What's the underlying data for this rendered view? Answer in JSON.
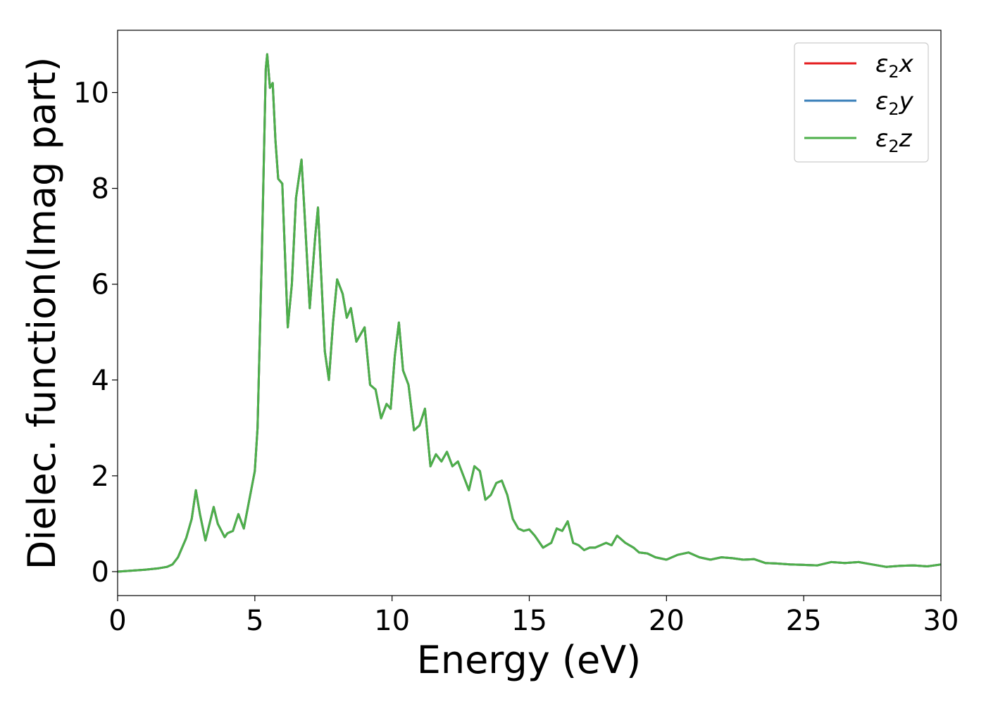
{
  "chart_data": {
    "type": "line",
    "title": "",
    "xlabel": "Energy (eV)",
    "ylabel": "Dielec. function(Imag part)",
    "xlim": [
      0,
      30
    ],
    "ylim": [
      -0.5,
      11.3
    ],
    "xticks": [
      "0",
      "5",
      "10",
      "15",
      "20",
      "25",
      "30"
    ],
    "yticks": [
      "0",
      "2",
      "4",
      "6",
      "8",
      "10"
    ],
    "grid": false,
    "legend_position": "top-right",
    "series": [
      {
        "name": "ε₂x",
        "legend_base": "ε",
        "legend_sub": "2",
        "legend_var": "x",
        "color": "#e41a1c",
        "x": [
          0,
          0.5,
          1.0,
          1.5,
          1.8,
          2.0,
          2.2,
          2.5,
          2.7,
          2.85,
          3.0,
          3.2,
          3.5,
          3.65,
          3.9,
          4.0,
          4.2,
          4.4,
          4.6,
          4.8,
          5.0,
          5.1,
          5.25,
          5.4,
          5.45,
          5.55,
          5.65,
          5.75,
          5.85,
          6.0,
          6.2,
          6.35,
          6.5,
          6.7,
          6.8,
          7.0,
          7.2,
          7.3,
          7.55,
          7.7,
          7.85,
          8.0,
          8.2,
          8.35,
          8.5,
          8.7,
          9.0,
          9.2,
          9.4,
          9.6,
          9.8,
          9.95,
          10.1,
          10.25,
          10.4,
          10.6,
          10.8,
          11.0,
          11.2,
          11.4,
          11.6,
          11.8,
          12.0,
          12.2,
          12.4,
          12.6,
          12.8,
          13.0,
          13.2,
          13.4,
          13.6,
          13.8,
          14.0,
          14.2,
          14.4,
          14.6,
          14.8,
          15.0,
          15.2,
          15.5,
          15.8,
          16.0,
          16.2,
          16.4,
          16.6,
          16.8,
          17.0,
          17.2,
          17.4,
          17.6,
          17.8,
          18.0,
          18.2,
          18.5,
          18.8,
          19.0,
          19.3,
          19.6,
          20.0,
          20.4,
          20.8,
          21.2,
          21.6,
          22.0,
          22.4,
          22.8,
          23.2,
          23.6,
          24.0,
          24.5,
          25.0,
          25.5,
          26.0,
          26.5,
          27.0,
          27.5,
          28.0,
          28.5,
          29.0,
          29.5,
          30.0
        ],
        "y": [
          0.0,
          0.02,
          0.04,
          0.07,
          0.1,
          0.15,
          0.3,
          0.7,
          1.1,
          1.7,
          1.2,
          0.65,
          1.35,
          1.0,
          0.72,
          0.8,
          0.85,
          1.2,
          0.9,
          1.5,
          2.1,
          3.0,
          6.5,
          10.5,
          10.8,
          10.1,
          10.2,
          9.0,
          8.2,
          8.1,
          5.1,
          6.0,
          7.8,
          8.6,
          7.6,
          5.5,
          7.0,
          7.6,
          4.6,
          4.0,
          5.2,
          6.1,
          5.8,
          5.3,
          5.5,
          4.8,
          5.1,
          3.9,
          3.8,
          3.2,
          3.5,
          3.4,
          4.5,
          5.2,
          4.2,
          3.9,
          2.95,
          3.05,
          3.4,
          2.2,
          2.45,
          2.3,
          2.5,
          2.2,
          2.3,
          2.0,
          1.7,
          2.2,
          2.1,
          1.5,
          1.6,
          1.85,
          1.9,
          1.6,
          1.1,
          0.9,
          0.85,
          0.88,
          0.75,
          0.5,
          0.6,
          0.9,
          0.85,
          1.05,
          0.6,
          0.55,
          0.45,
          0.5,
          0.5,
          0.55,
          0.6,
          0.55,
          0.75,
          0.6,
          0.5,
          0.4,
          0.38,
          0.3,
          0.25,
          0.35,
          0.4,
          0.3,
          0.25,
          0.3,
          0.28,
          0.25,
          0.26,
          0.18,
          0.17,
          0.15,
          0.14,
          0.13,
          0.2,
          0.18,
          0.2,
          0.15,
          0.1,
          0.12,
          0.13,
          0.11,
          0.15
        ]
      },
      {
        "name": "ε₂y",
        "legend_base": "ε",
        "legend_sub": "2",
        "legend_var": "y",
        "color": "#377eb8",
        "x": [
          0,
          0.5,
          1.0,
          1.5,
          1.8,
          2.0,
          2.2,
          2.5,
          2.7,
          2.85,
          3.0,
          3.2,
          3.5,
          3.65,
          3.9,
          4.0,
          4.2,
          4.4,
          4.6,
          4.8,
          5.0,
          5.1,
          5.25,
          5.4,
          5.45,
          5.55,
          5.65,
          5.75,
          5.85,
          6.0,
          6.2,
          6.35,
          6.5,
          6.7,
          6.8,
          7.0,
          7.2,
          7.3,
          7.55,
          7.7,
          7.85,
          8.0,
          8.2,
          8.35,
          8.5,
          8.7,
          9.0,
          9.2,
          9.4,
          9.6,
          9.8,
          9.95,
          10.1,
          10.25,
          10.4,
          10.6,
          10.8,
          11.0,
          11.2,
          11.4,
          11.6,
          11.8,
          12.0,
          12.2,
          12.4,
          12.6,
          12.8,
          13.0,
          13.2,
          13.4,
          13.6,
          13.8,
          14.0,
          14.2,
          14.4,
          14.6,
          14.8,
          15.0,
          15.2,
          15.5,
          15.8,
          16.0,
          16.2,
          16.4,
          16.6,
          16.8,
          17.0,
          17.2,
          17.4,
          17.6,
          17.8,
          18.0,
          18.2,
          18.5,
          18.8,
          19.0,
          19.3,
          19.6,
          20.0,
          20.4,
          20.8,
          21.2,
          21.6,
          22.0,
          22.4,
          22.8,
          23.2,
          23.6,
          24.0,
          24.5,
          25.0,
          25.5,
          26.0,
          26.5,
          27.0,
          27.5,
          28.0,
          28.5,
          29.0,
          29.5,
          30.0
        ],
        "y": [
          0.0,
          0.02,
          0.04,
          0.07,
          0.1,
          0.15,
          0.3,
          0.7,
          1.1,
          1.7,
          1.2,
          0.65,
          1.35,
          1.0,
          0.72,
          0.8,
          0.85,
          1.2,
          0.9,
          1.5,
          2.1,
          3.0,
          6.5,
          10.5,
          10.8,
          10.1,
          10.2,
          9.0,
          8.2,
          8.1,
          5.1,
          6.0,
          7.8,
          8.6,
          7.6,
          5.5,
          7.0,
          7.6,
          4.6,
          4.0,
          5.2,
          6.1,
          5.8,
          5.3,
          5.5,
          4.8,
          5.1,
          3.9,
          3.8,
          3.2,
          3.5,
          3.4,
          4.5,
          5.2,
          4.2,
          3.9,
          2.95,
          3.05,
          3.4,
          2.2,
          2.45,
          2.3,
          2.5,
          2.2,
          2.3,
          2.0,
          1.7,
          2.2,
          2.1,
          1.5,
          1.6,
          1.85,
          1.9,
          1.6,
          1.1,
          0.9,
          0.85,
          0.88,
          0.75,
          0.5,
          0.6,
          0.9,
          0.85,
          1.05,
          0.6,
          0.55,
          0.45,
          0.5,
          0.5,
          0.55,
          0.6,
          0.55,
          0.75,
          0.6,
          0.5,
          0.4,
          0.38,
          0.3,
          0.25,
          0.35,
          0.4,
          0.3,
          0.25,
          0.3,
          0.28,
          0.25,
          0.26,
          0.18,
          0.17,
          0.15,
          0.14,
          0.13,
          0.2,
          0.18,
          0.2,
          0.15,
          0.1,
          0.12,
          0.13,
          0.11,
          0.15
        ]
      },
      {
        "name": "ε₂z",
        "legend_base": "ε",
        "legend_sub": "2",
        "legend_var": "z",
        "color": "#4daf4a",
        "x": [
          0,
          0.5,
          1.0,
          1.5,
          1.8,
          2.0,
          2.2,
          2.5,
          2.7,
          2.85,
          3.0,
          3.2,
          3.5,
          3.65,
          3.9,
          4.0,
          4.2,
          4.4,
          4.6,
          4.8,
          5.0,
          5.1,
          5.25,
          5.4,
          5.45,
          5.55,
          5.65,
          5.75,
          5.85,
          6.0,
          6.2,
          6.35,
          6.5,
          6.7,
          6.8,
          7.0,
          7.2,
          7.3,
          7.55,
          7.7,
          7.85,
          8.0,
          8.2,
          8.35,
          8.5,
          8.7,
          9.0,
          9.2,
          9.4,
          9.6,
          9.8,
          9.95,
          10.1,
          10.25,
          10.4,
          10.6,
          10.8,
          11.0,
          11.2,
          11.4,
          11.6,
          11.8,
          12.0,
          12.2,
          12.4,
          12.6,
          12.8,
          13.0,
          13.2,
          13.4,
          13.6,
          13.8,
          14.0,
          14.2,
          14.4,
          14.6,
          14.8,
          15.0,
          15.2,
          15.5,
          15.8,
          16.0,
          16.2,
          16.4,
          16.6,
          16.8,
          17.0,
          17.2,
          17.4,
          17.6,
          17.8,
          18.0,
          18.2,
          18.5,
          18.8,
          19.0,
          19.3,
          19.6,
          20.0,
          20.4,
          20.8,
          21.2,
          21.6,
          22.0,
          22.4,
          22.8,
          23.2,
          23.6,
          24.0,
          24.5,
          25.0,
          25.5,
          26.0,
          26.5,
          27.0,
          27.5,
          28.0,
          28.5,
          29.0,
          29.5,
          30.0
        ],
        "y": [
          0.0,
          0.02,
          0.04,
          0.07,
          0.1,
          0.15,
          0.3,
          0.7,
          1.1,
          1.7,
          1.2,
          0.65,
          1.35,
          1.0,
          0.72,
          0.8,
          0.85,
          1.2,
          0.9,
          1.5,
          2.1,
          3.0,
          6.5,
          10.5,
          10.8,
          10.1,
          10.2,
          9.0,
          8.2,
          8.1,
          5.1,
          6.0,
          7.8,
          8.6,
          7.6,
          5.5,
          7.0,
          7.6,
          4.6,
          4.0,
          5.2,
          6.1,
          5.8,
          5.3,
          5.5,
          4.8,
          5.1,
          3.9,
          3.8,
          3.2,
          3.5,
          3.4,
          4.5,
          5.2,
          4.2,
          3.9,
          2.95,
          3.05,
          3.4,
          2.2,
          2.45,
          2.3,
          2.5,
          2.2,
          2.3,
          2.0,
          1.7,
          2.2,
          2.1,
          1.5,
          1.6,
          1.85,
          1.9,
          1.6,
          1.1,
          0.9,
          0.85,
          0.88,
          0.75,
          0.5,
          0.6,
          0.9,
          0.85,
          1.05,
          0.6,
          0.55,
          0.45,
          0.5,
          0.5,
          0.55,
          0.6,
          0.55,
          0.75,
          0.6,
          0.5,
          0.4,
          0.38,
          0.3,
          0.25,
          0.35,
          0.4,
          0.3,
          0.25,
          0.3,
          0.28,
          0.25,
          0.26,
          0.18,
          0.17,
          0.15,
          0.14,
          0.13,
          0.2,
          0.18,
          0.2,
          0.15,
          0.1,
          0.12,
          0.13,
          0.11,
          0.15
        ]
      }
    ]
  }
}
